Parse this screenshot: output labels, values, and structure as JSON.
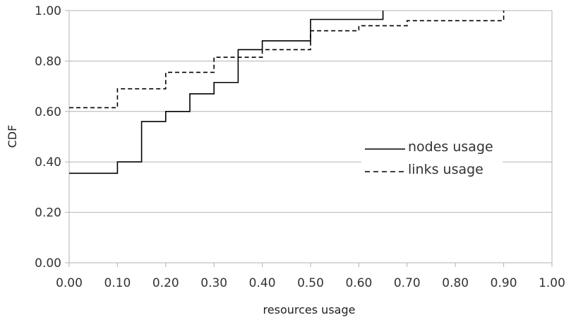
{
  "chart_data": {
    "type": "line",
    "title": "",
    "xlabel": "resources usage",
    "ylabel": "CDF",
    "xlim": [
      0,
      1
    ],
    "ylim": [
      0,
      1
    ],
    "x_ticks": [
      "0.00",
      "0.10",
      "0.20",
      "0.30",
      "0.40",
      "0.50",
      "0.60",
      "0.70",
      "0.80",
      "0.90",
      "1.00"
    ],
    "y_ticks": [
      "0.00",
      "0.20",
      "0.40",
      "0.60",
      "0.80",
      "1.00"
    ],
    "grid": "horizontal",
    "legend_position": "right-center",
    "series": [
      {
        "name": "nodes usage",
        "style": "solid",
        "color": "#000000",
        "steps": [
          [
            0.0,
            0.355
          ],
          [
            0.1,
            0.4
          ],
          [
            0.15,
            0.56
          ],
          [
            0.2,
            0.6
          ],
          [
            0.25,
            0.67
          ],
          [
            0.3,
            0.715
          ],
          [
            0.35,
            0.845
          ],
          [
            0.4,
            0.88
          ],
          [
            0.5,
            0.965
          ],
          [
            0.65,
            1.0
          ]
        ],
        "x_end": 0.65
      },
      {
        "name": "links usage",
        "style": "dashed",
        "color": "#000000",
        "steps": [
          [
            0.0,
            0.615
          ],
          [
            0.1,
            0.69
          ],
          [
            0.2,
            0.755
          ],
          [
            0.3,
            0.815
          ],
          [
            0.4,
            0.845
          ],
          [
            0.5,
            0.92
          ],
          [
            0.6,
            0.94
          ],
          [
            0.7,
            0.96
          ],
          [
            0.9,
            1.0
          ]
        ],
        "x_end": 0.9
      }
    ],
    "colors": {
      "grid": "#b3b3b3",
      "axis": "#b3b3b3",
      "text": "#333333"
    }
  }
}
